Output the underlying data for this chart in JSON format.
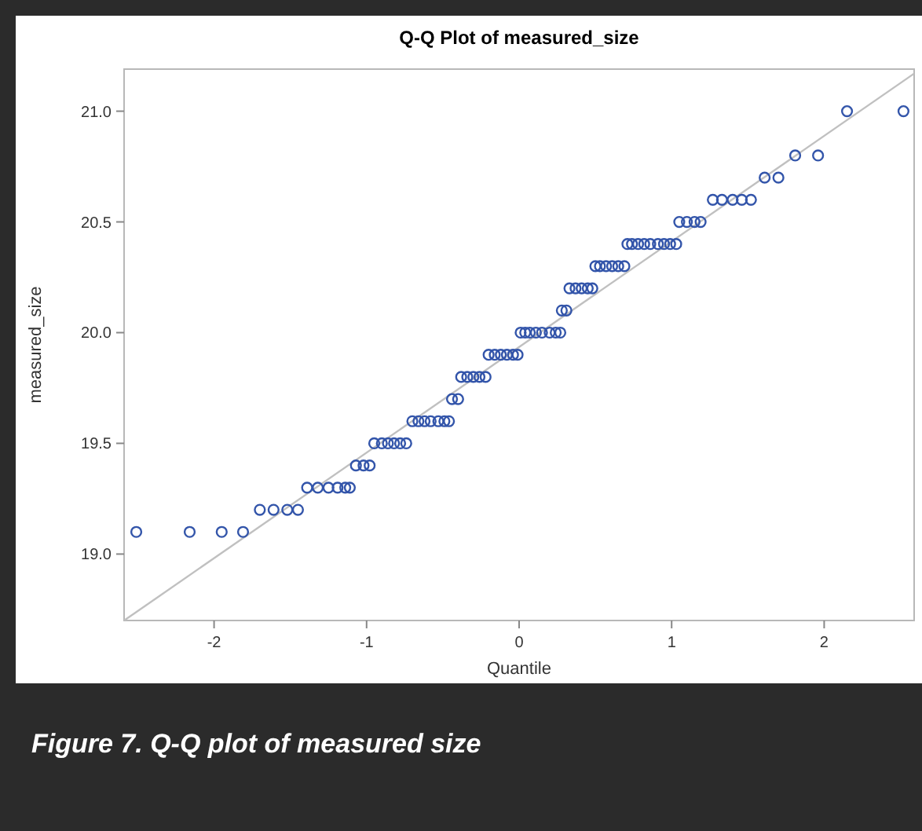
{
  "chart_data": {
    "type": "scatter",
    "title": "Q-Q Plot of measured_size",
    "xlabel": "Quantile",
    "ylabel": "measured_size",
    "annotations": [
      "Figure 7. Q-Q plot of measured size"
    ],
    "xlim": [
      -2.59,
      2.59
    ],
    "ylim": [
      18.7,
      21.19
    ],
    "xticks": [
      -2,
      -1,
      0,
      1,
      2
    ],
    "yticks": [
      {
        "value": 19,
        "label": "19.0"
      },
      {
        "value": 19.5,
        "label": "19.5"
      },
      {
        "value": 20,
        "label": "20.0"
      },
      {
        "value": 20.5,
        "label": "20.5"
      },
      {
        "value": 21,
        "label": "21.0"
      }
    ],
    "grid": false,
    "marker": "circle",
    "series": [
      {
        "type": "line",
        "color": "#c0c0c0",
        "x": [
          -2.59,
          2.59
        ],
        "values": [
          18.7,
          21.17
        ],
        "marker": "none",
        "line_style": "solid"
      },
      {
        "color": "#3355aa",
        "x": [
          -2.51,
          -2.16,
          -1.95,
          -1.81,
          -1.7,
          -1.61,
          -1.52,
          -1.45,
          -1.39,
          -1.32,
          -1.25,
          -1.19,
          -1.14,
          -1.11,
          -1.07,
          -1.02,
          -0.98,
          -0.95,
          -0.9,
          -0.86,
          -0.82,
          -0.78,
          -0.74,
          -0.7,
          -0.66,
          -0.62,
          -0.58,
          -0.53,
          -0.49,
          -0.46,
          -0.44,
          -0.4,
          -0.38,
          -0.34,
          -0.3,
          -0.26,
          -0.22,
          -0.2,
          -0.16,
          -0.12,
          -0.08,
          -0.04,
          -0.01,
          0.01,
          0.04,
          0.07,
          0.11,
          0.15,
          0.2,
          0.24,
          0.27,
          0.28,
          0.31,
          0.33,
          0.37,
          0.41,
          0.45,
          0.48,
          0.5,
          0.53,
          0.57,
          0.61,
          0.65,
          0.69,
          0.71,
          0.74,
          0.78,
          0.82,
          0.86,
          0.91,
          0.95,
          0.99,
          1.03,
          1.05,
          1.1,
          1.15,
          1.19,
          1.27,
          1.33,
          1.4,
          1.46,
          1.52,
          1.61,
          1.7,
          1.81,
          1.96,
          2.15,
          2.52
        ],
        "values": [
          19.1,
          19.1,
          19.1,
          19.1,
          19.2,
          19.2,
          19.2,
          19.2,
          19.3,
          19.3,
          19.3,
          19.3,
          19.3,
          19.3,
          19.4,
          19.4,
          19.4,
          19.5,
          19.5,
          19.5,
          19.5,
          19.5,
          19.5,
          19.6,
          19.6,
          19.6,
          19.6,
          19.6,
          19.6,
          19.6,
          19.7,
          19.7,
          19.8,
          19.8,
          19.8,
          19.8,
          19.8,
          19.9,
          19.9,
          19.9,
          19.9,
          19.9,
          19.9,
          20.0,
          20.0,
          20.0,
          20.0,
          20.0,
          20.0,
          20.0,
          20.0,
          20.1,
          20.1,
          20.2,
          20.2,
          20.2,
          20.2,
          20.2,
          20.3,
          20.3,
          20.3,
          20.3,
          20.3,
          20.3,
          20.4,
          20.4,
          20.4,
          20.4,
          20.4,
          20.4,
          20.4,
          20.4,
          20.4,
          20.5,
          20.5,
          20.5,
          20.5,
          20.6,
          20.6,
          20.6,
          20.6,
          20.6,
          20.7,
          20.7,
          20.8,
          20.8,
          21.0,
          21.0
        ]
      }
    ]
  }
}
